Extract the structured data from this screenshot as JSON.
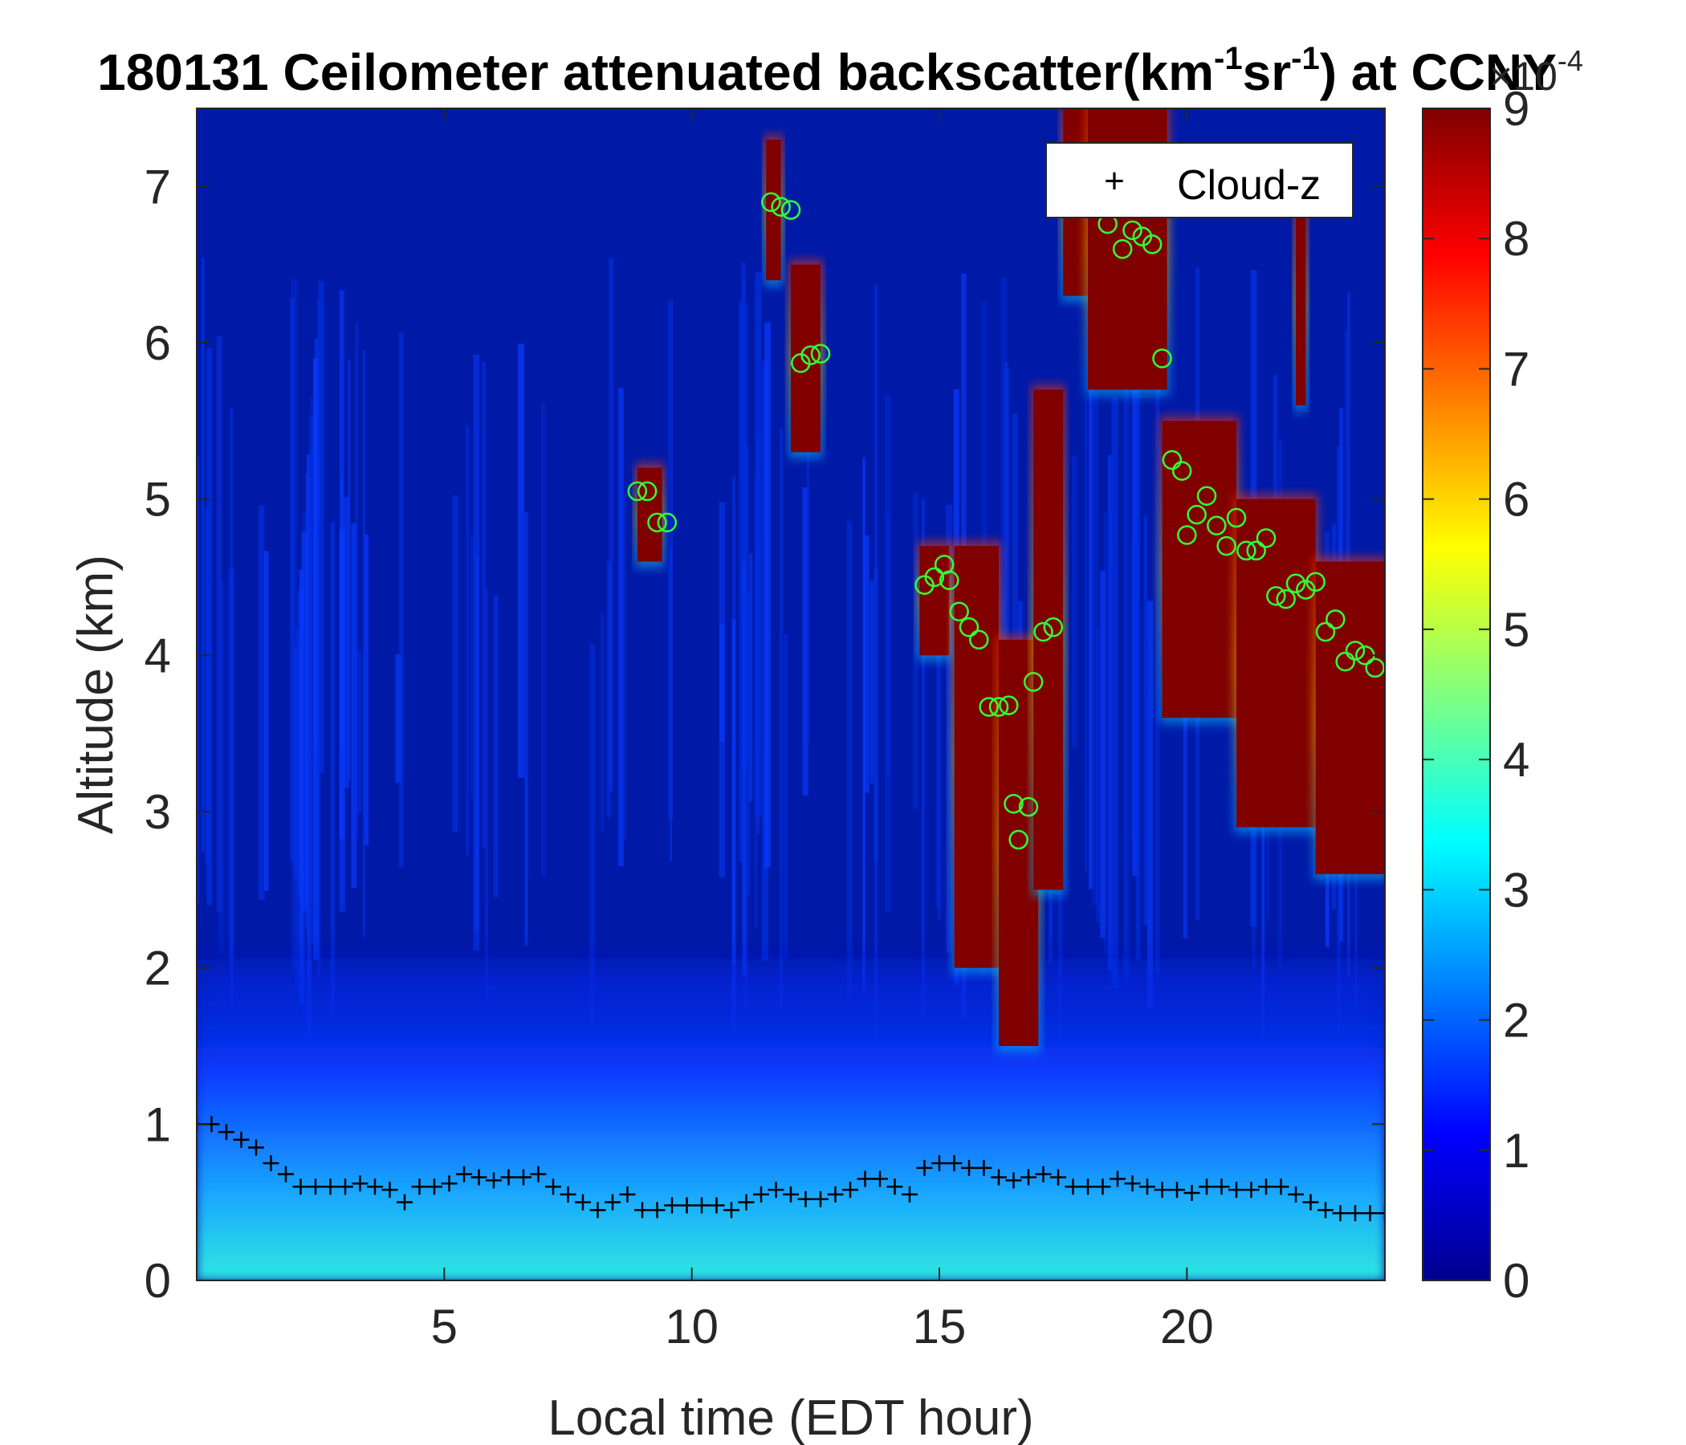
{
  "chart_data": {
    "type": "heatmap",
    "title": {
      "prefix": "180131 Ceilometer attenuated backscatter(km",
      "sup1": "-1",
      "mid": "sr",
      "sup2": "-1",
      "suffix": ") at CCNY"
    },
    "xlabel": "Local time (EDT hour)",
    "ylabel": "Altitude (km)",
    "xlim": [
      0,
      24
    ],
    "ylim": [
      0,
      7.5
    ],
    "xticks": [
      5,
      10,
      15,
      20
    ],
    "yticks": [
      0,
      1,
      2,
      3,
      4,
      5,
      6,
      7
    ],
    "colorbar": {
      "colormap": "jet",
      "range": [
        0,
        9
      ],
      "ticks": [
        0,
        1,
        2,
        3,
        4,
        5,
        6,
        7,
        8,
        9
      ],
      "exponent_base": "×10",
      "exponent_power": "-4"
    },
    "legend": {
      "entries": [
        "Cloud-z"
      ],
      "position": "top-right"
    },
    "cloud_regions": [
      {
        "x0": 8.9,
        "x1": 9.4,
        "y_bottom": 4.6,
        "y_top": 5.2
      },
      {
        "x0": 11.5,
        "x1": 11.8,
        "y_bottom": 6.4,
        "y_top": 7.3
      },
      {
        "x0": 12.0,
        "x1": 12.6,
        "y_bottom": 5.3,
        "y_top": 6.5
      },
      {
        "x0": 14.6,
        "x1": 15.2,
        "y_bottom": 4.0,
        "y_top": 4.7
      },
      {
        "x0": 15.3,
        "x1": 16.2,
        "y_bottom": 2.0,
        "y_top": 4.7
      },
      {
        "x0": 16.2,
        "x1": 17.0,
        "y_bottom": 1.5,
        "y_top": 4.1
      },
      {
        "x0": 16.9,
        "x1": 17.5,
        "y_bottom": 2.5,
        "y_top": 5.7
      },
      {
        "x0": 17.5,
        "x1": 18.0,
        "y_bottom": 6.3,
        "y_top": 7.5
      },
      {
        "x0": 18.0,
        "x1": 19.6,
        "y_bottom": 5.7,
        "y_top": 7.5
      },
      {
        "x0": 19.5,
        "x1": 21.0,
        "y_bottom": 3.6,
        "y_top": 5.5
      },
      {
        "x0": 21.0,
        "x1": 22.6,
        "y_bottom": 2.9,
        "y_top": 5.0
      },
      {
        "x0": 22.2,
        "x1": 22.4,
        "y_bottom": 5.6,
        "y_top": 6.9
      },
      {
        "x0": 22.6,
        "x1": 24.0,
        "y_bottom": 2.6,
        "y_top": 4.6
      }
    ],
    "cloud_base_markers": {
      "x": [
        8.9,
        9.1,
        9.3,
        9.5,
        11.6,
        11.8,
        12.0,
        12.2,
        12.4,
        12.6,
        14.7,
        14.9,
        15.1,
        15.2,
        15.4,
        15.6,
        15.8,
        16.0,
        16.2,
        16.4,
        16.5,
        16.6,
        16.8,
        16.9,
        17.1,
        17.3,
        18.4,
        18.7,
        18.9,
        19.1,
        19.3,
        19.5,
        19.7,
        19.9,
        20.0,
        20.2,
        20.4,
        20.6,
        20.8,
        21.0,
        21.2,
        21.4,
        21.6,
        21.8,
        22.0,
        22.2,
        22.4,
        22.6,
        22.8,
        23.0,
        23.2,
        23.4,
        23.6,
        23.8
      ],
      "y": [
        5.05,
        5.05,
        4.85,
        4.85,
        6.9,
        6.87,
        6.85,
        5.87,
        5.92,
        5.93,
        4.45,
        4.5,
        4.58,
        4.48,
        4.28,
        4.18,
        4.1,
        3.67,
        3.67,
        3.68,
        3.05,
        2.82,
        3.03,
        3.83,
        4.15,
        4.18,
        6.76,
        6.6,
        6.72,
        6.68,
        6.63,
        5.9,
        5.25,
        5.18,
        4.77,
        4.9,
        5.02,
        4.83,
        4.7,
        4.88,
        4.67,
        4.67,
        4.75,
        4.38,
        4.36,
        4.46,
        4.42,
        4.47,
        4.15,
        4.23,
        3.96,
        4.03,
        4.0,
        3.92
      ]
    },
    "mixing_layer": {
      "x": [
        0.0,
        0.3,
        0.6,
        0.9,
        1.2,
        1.5,
        1.8,
        2.1,
        2.4,
        2.7,
        3.0,
        3.3,
        3.6,
        3.9,
        4.2,
        4.5,
        4.8,
        5.1,
        5.4,
        5.7,
        6.0,
        6.3,
        6.6,
        6.9,
        7.2,
        7.5,
        7.8,
        8.1,
        8.4,
        8.7,
        9.0,
        9.3,
        9.6,
        9.9,
        10.2,
        10.5,
        10.8,
        11.1,
        11.4,
        11.7,
        12.0,
        12.3,
        12.6,
        12.9,
        13.2,
        13.5,
        13.8,
        14.1,
        14.4,
        14.7,
        15.0,
        15.3,
        15.6,
        15.9,
        16.2,
        16.5,
        16.8,
        17.1,
        17.4,
        17.7,
        18.0,
        18.3,
        18.6,
        18.9,
        19.2,
        19.5,
        19.8,
        20.1,
        20.4,
        20.7,
        21.0,
        21.3,
        21.6,
        21.9,
        22.2,
        22.5,
        22.8,
        23.1,
        23.4,
        23.7,
        24.0
      ],
      "y": [
        1.0,
        1.0,
        0.95,
        0.9,
        0.85,
        0.75,
        0.68,
        0.6,
        0.6,
        0.6,
        0.6,
        0.62,
        0.6,
        0.58,
        0.5,
        0.6,
        0.6,
        0.62,
        0.68,
        0.66,
        0.64,
        0.66,
        0.66,
        0.68,
        0.6,
        0.55,
        0.5,
        0.45,
        0.5,
        0.55,
        0.45,
        0.45,
        0.48,
        0.48,
        0.48,
        0.48,
        0.45,
        0.5,
        0.55,
        0.58,
        0.55,
        0.52,
        0.52,
        0.55,
        0.58,
        0.65,
        0.65,
        0.6,
        0.55,
        0.72,
        0.75,
        0.75,
        0.72,
        0.72,
        0.66,
        0.64,
        0.66,
        0.68,
        0.66,
        0.6,
        0.6,
        0.6,
        0.65,
        0.62,
        0.6,
        0.58,
        0.58,
        0.56,
        0.6,
        0.6,
        0.58,
        0.58,
        0.6,
        0.6,
        0.55,
        0.5,
        0.45,
        0.43,
        0.43,
        0.43,
        0.43
      ]
    }
  }
}
